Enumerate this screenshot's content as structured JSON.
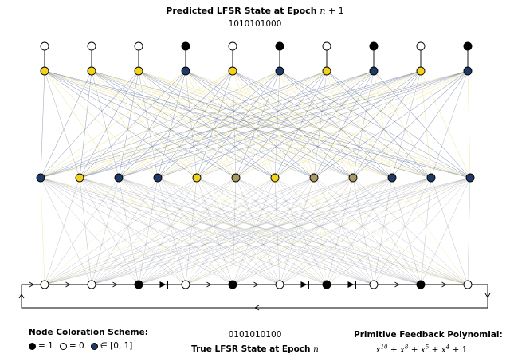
{
  "top": {
    "title_text": "Predicted LFSR State at Epoch ",
    "title_var": "n",
    "title_suffix": " + 1",
    "state": "1010101000"
  },
  "bottom": {
    "state": "0101010100",
    "title_text": "True LFSR State at Epoch ",
    "title_var": "n"
  },
  "legend": {
    "title": "Node Coloration Scheme:",
    "items": [
      {
        "color": "#000000",
        "label": "= 1"
      },
      {
        "color": "#ffffff",
        "label": "= 0"
      },
      {
        "color": "#1f3a66",
        "label": "∈ [0, 1]"
      }
    ]
  },
  "polynomial": {
    "title": "Primitive Feedback Polynomial:",
    "terms": [
      {
        "base": "x",
        "exp": "10"
      },
      {
        "base": "x",
        "exp": "8"
      },
      {
        "base": "x",
        "exp": "5"
      },
      {
        "base": "x",
        "exp": "4"
      },
      {
        "base": "1",
        "exp": ""
      }
    ]
  },
  "colors": {
    "one": "#000000",
    "zero": "#ffffff",
    "blue": "#1f3a66",
    "yellow": "#f2d21b",
    "khaki": "#a89a62",
    "edge_gray": "#8a8f99",
    "edge_yellow": "#e8d76a",
    "edge_blue": "#5a6a8e"
  },
  "network": {
    "top_binary": [
      0,
      0,
      0,
      1,
      0,
      1,
      0,
      1,
      0,
      1
    ],
    "output_layer": [
      "yellow",
      "yellow",
      "yellow",
      "blue",
      "yellow",
      "blue",
      "yellow",
      "blue",
      "yellow",
      "blue"
    ],
    "hidden_layer": [
      "blue",
      "yellow",
      "blue",
      "blue",
      "yellow",
      "khaki",
      "yellow",
      "khaki",
      "khaki",
      "blue",
      "blue",
      "blue"
    ],
    "input_register": [
      0,
      0,
      1,
      0,
      1,
      0,
      1,
      0,
      1,
      0
    ],
    "feedback_taps": [
      2,
      5,
      6
    ]
  }
}
